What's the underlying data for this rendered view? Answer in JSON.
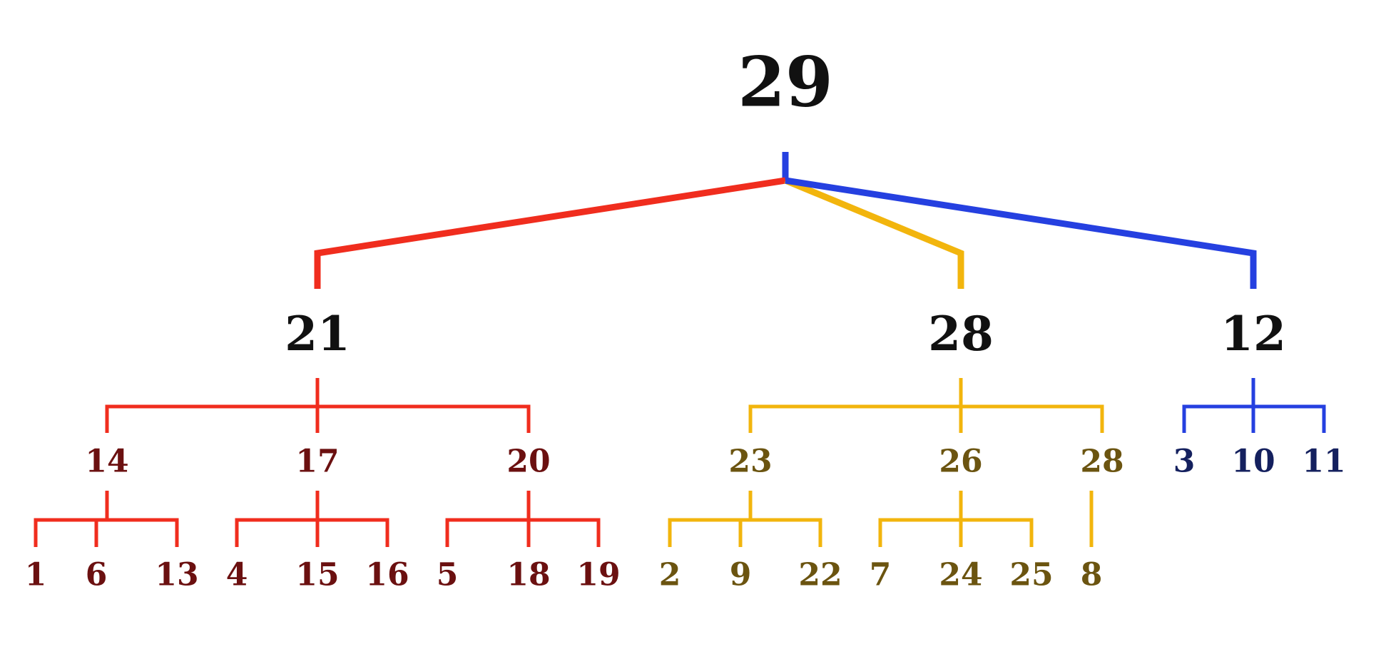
{
  "colors": {
    "red": "#f02d1e",
    "yellow": "#f2b50d",
    "blue": "#2540e0",
    "root_text": "#111111",
    "red_text": "#6b1010",
    "yellow_text": "#6b5410",
    "blue_text": "#14205e"
  },
  "tree": {
    "root": "29",
    "children": [
      {
        "label": "21",
        "color": "red",
        "text_color": "red_text",
        "children": [
          {
            "label": "14",
            "children": [
              "1",
              "6",
              "13"
            ]
          },
          {
            "label": "17",
            "children": [
              "4",
              "15",
              "16"
            ]
          },
          {
            "label": "20",
            "children": [
              "5",
              "18",
              "19"
            ]
          }
        ]
      },
      {
        "label": "28",
        "color": "yellow",
        "text_color": "yellow_text",
        "children": [
          {
            "label": "23",
            "children": [
              "2",
              "9",
              "22"
            ]
          },
          {
            "label": "26",
            "children": [
              "7",
              "24",
              "25"
            ]
          },
          {
            "label": "28",
            "children": [
              "8"
            ]
          }
        ]
      },
      {
        "label": "12",
        "color": "blue",
        "text_color": "blue_text",
        "children": [
          {
            "label": "3",
            "children": []
          },
          {
            "label": "10",
            "children": []
          },
          {
            "label": "11",
            "children": []
          }
        ]
      }
    ]
  }
}
